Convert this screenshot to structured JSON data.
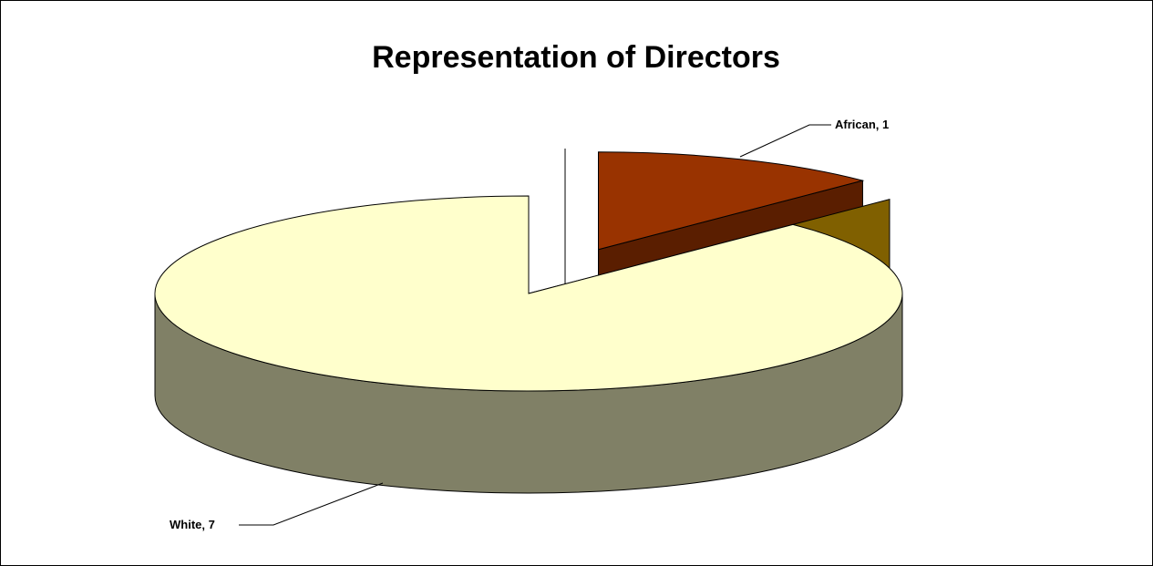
{
  "chart_data": {
    "type": "pie3d",
    "title": "Representation of Directors",
    "categories": [
      "African",
      null,
      "White",
      null
    ],
    "values": [
      1,
      0,
      7,
      0
    ],
    "colors": [
      "#993300",
      "#806000",
      "#ffffcc",
      "#808066"
    ],
    "side_colors": [
      "#5a1e00",
      "#806000",
      "#808066",
      "#808066"
    ]
  }
}
